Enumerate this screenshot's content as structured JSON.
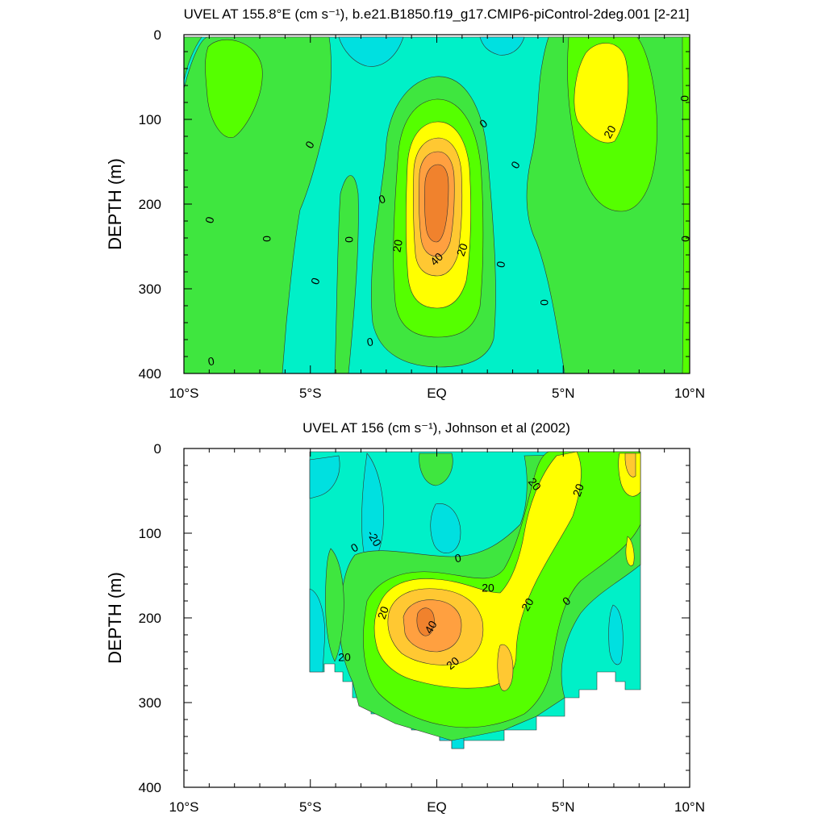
{
  "chart_data": [
    {
      "type": "contour",
      "title": "UVEL AT 155.8°E (cm s⁻¹), b.e21.B1850.f19_g17.CMIP6-piControl-2deg.001 [2-21]",
      "ylabel": "DEPTH (m)",
      "xlabel": "",
      "xlim": [
        -10,
        10
      ],
      "ylim": [
        400,
        0
      ],
      "x_ticks": [
        -10,
        -5,
        0,
        5,
        10
      ],
      "x_tick_labels": [
        "10°S",
        "5°S",
        "EQ",
        "5°N",
        "10°N"
      ],
      "y_ticks": [
        0,
        100,
        200,
        300,
        400
      ],
      "y_tick_labels": [
        "0",
        "100",
        "200",
        "300",
        "400"
      ],
      "contour_interval": 10,
      "level_colors": {
        "below_-10": "#00E0E0",
        "-10_to_0": "#00F0C8",
        "0_to_10": "#3FE63F",
        "10_to_20": "#55FF00",
        "20_to_30": "#FFFF00",
        "30_to_40": "#FFC832",
        "40_to_50": "#FFA040",
        "above_50": "#F0822D"
      },
      "contour_labels": [
        "0",
        "0",
        "0",
        "0",
        "0",
        "0",
        "0",
        "0",
        "0",
        "0",
        "0",
        "0",
        "0",
        "0",
        "20",
        "20",
        "40",
        "20"
      ],
      "features": [
        {
          "name": "equatorial undercurrent core",
          "x": -0.1,
          "depth": 200,
          "max_value": 45
        },
        {
          "name": "northern eastward jet",
          "x": 6.5,
          "depth": 75,
          "max_value": 25
        },
        {
          "name": "southern eastward flow",
          "x": -8.5,
          "depth": 50,
          "max_value": 15
        }
      ]
    },
    {
      "type": "contour",
      "title": "UVEL AT 156 (cm s⁻¹), Johnson et al (2002)",
      "ylabel": "DEPTH (m)",
      "xlabel": "",
      "xlim": [
        -10,
        10
      ],
      "ylim": [
        400,
        0
      ],
      "x_ticks": [
        -10,
        -5,
        0,
        5,
        10
      ],
      "x_tick_labels": [
        "10°S",
        "5°S",
        "EQ",
        "5°N",
        "10°N"
      ],
      "y_ticks": [
        0,
        100,
        200,
        300,
        400
      ],
      "y_tick_labels": [
        "0",
        "100",
        "200",
        "300",
        "400"
      ],
      "data_xrange": [
        -5,
        8
      ],
      "contour_interval": 10,
      "contour_labels": [
        "-20",
        "0",
        "0",
        "20",
        "20",
        "20",
        "20",
        "40",
        "20",
        "20",
        "0",
        "20"
      ],
      "features": [
        {
          "name": "equatorial undercurrent core",
          "x": -0.4,
          "depth": 200,
          "max_value": 50
        },
        {
          "name": "northern eastward flow",
          "x": 4.5,
          "depth": 60,
          "max_value": 30
        }
      ]
    }
  ]
}
